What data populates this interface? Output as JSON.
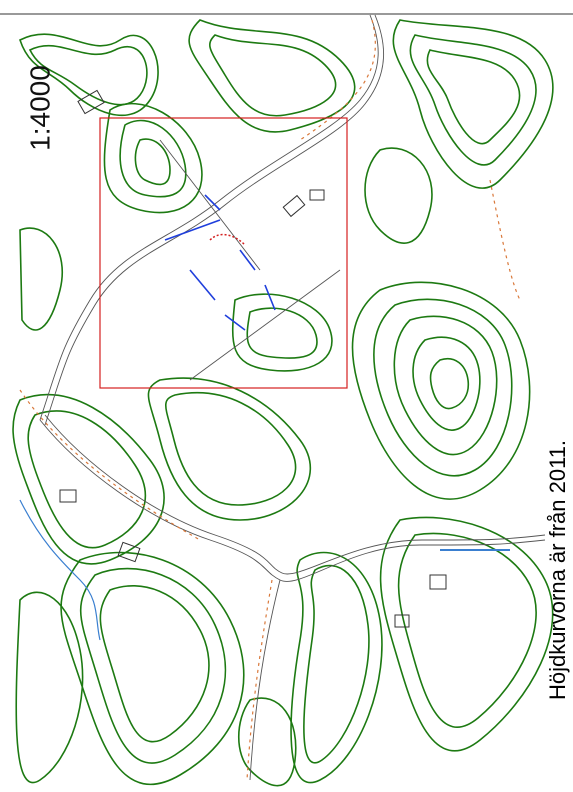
{
  "map": {
    "scale": "1:4000",
    "note": "Höjdkurvorna är från 2011."
  }
}
